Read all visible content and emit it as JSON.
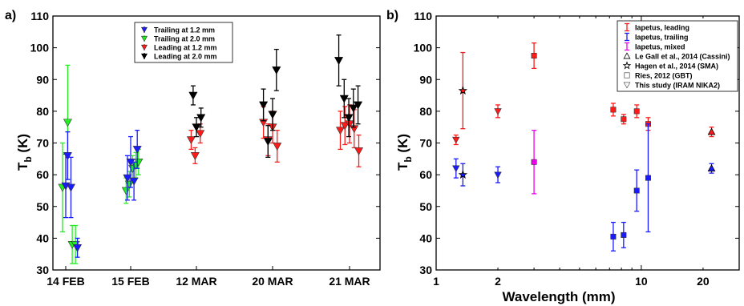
{
  "chart_data": [
    {
      "type": "scatter",
      "panel_label": "a)",
      "title": "",
      "xlabel": "",
      "ylabel": "T",
      "ylabel_sub": "b",
      "ylabel_unit": "(K)",
      "ylim": [
        30,
        110
      ],
      "yticks": [
        30,
        40,
        50,
        60,
        70,
        80,
        90,
        100,
        110
      ],
      "categories": [
        "14 FEB",
        "15 FEB",
        "12 MAR",
        "20 MAR",
        "21 MAR"
      ],
      "legend": {
        "placement": "top-center"
      },
      "series": [
        {
          "name": "Trailing at 1.2 mm",
          "color": "#1a1aff",
          "marker": "triangle-down",
          "points": [
            {
              "x": 0.0,
              "y": 56.5,
              "err": 10
            },
            {
              "x": 0.03,
              "y": 66.0,
              "err": 7.5
            },
            {
              "x": 0.08,
              "y": 56.0,
              "err": 9.5
            },
            {
              "x": 0.18,
              "y": 37.0,
              "err": 3
            },
            {
              "x": 0.95,
              "y": 59.0,
              "err": 7
            },
            {
              "x": 1.0,
              "y": 64.0,
              "err": 8
            },
            {
              "x": 1.05,
              "y": 58.0,
              "err": 6
            },
            {
              "x": 1.1,
              "y": 68.0,
              "err": 6
            }
          ]
        },
        {
          "name": "Trailing at 2.0 mm",
          "color": "#22ee22",
          "marker": "triangle-down",
          "points": [
            {
              "x": -0.05,
              "y": 56.0,
              "err": 14
            },
            {
              "x": 0.03,
              "y": 76.5,
              "err": 18
            },
            {
              "x": 0.1,
              "y": 38.0,
              "err": 6
            },
            {
              "x": 0.15,
              "y": 38.0,
              "err": 6
            },
            {
              "x": 0.93,
              "y": 55.0,
              "err": 4
            },
            {
              "x": 0.98,
              "y": 57.0,
              "err": 4
            },
            {
              "x": 1.03,
              "y": 62.0,
              "err": 4
            },
            {
              "x": 1.08,
              "y": 63.0,
              "err": 4
            },
            {
              "x": 1.12,
              "y": 64.0,
              "err": 4
            }
          ]
        },
        {
          "name": "Leading at 1.2 mm",
          "color": "#ff1a1a",
          "marker": "triangle-down",
          "points": [
            {
              "x": 1.92,
              "y": 71.0,
              "err": 3
            },
            {
              "x": 1.98,
              "y": 66.0,
              "err": 2.5
            },
            {
              "x": 2.05,
              "y": 73.0,
              "err": 3
            },
            {
              "x": 2.88,
              "y": 76.5,
              "err": 5
            },
            {
              "x": 2.94,
              "y": 71.0,
              "err": 5
            },
            {
              "x": 3.0,
              "y": 75.0,
              "err": 5
            },
            {
              "x": 3.06,
              "y": 69.0,
              "err": 5
            },
            {
              "x": 3.88,
              "y": 74.0,
              "err": 6
            },
            {
              "x": 3.94,
              "y": 75.5,
              "err": 6
            },
            {
              "x": 4.0,
              "y": 76.0,
              "err": 6
            },
            {
              "x": 4.06,
              "y": 74.5,
              "err": 6
            },
            {
              "x": 4.12,
              "y": 67.5,
              "err": 5
            }
          ]
        },
        {
          "name": "Leading at 2.0 mm",
          "color": "#000000",
          "marker": "triangle-down",
          "points": [
            {
              "x": 1.95,
              "y": 85.0,
              "err": 3
            },
            {
              "x": 2.0,
              "y": 75.0,
              "err": 3
            },
            {
              "x": 2.06,
              "y": 78.0,
              "err": 3
            },
            {
              "x": 2.88,
              "y": 82.0,
              "err": 5
            },
            {
              "x": 2.94,
              "y": 70.5,
              "err": 5
            },
            {
              "x": 3.0,
              "y": 79.0,
              "err": 5
            },
            {
              "x": 3.05,
              "y": 93.0,
              "err": 6.5
            },
            {
              "x": 3.86,
              "y": 96.0,
              "err": 8
            },
            {
              "x": 3.93,
              "y": 84.0,
              "err": 6
            },
            {
              "x": 3.99,
              "y": 78.0,
              "err": 6
            },
            {
              "x": 4.05,
              "y": 81.0,
              "err": 6
            },
            {
              "x": 4.11,
              "y": 82.0,
              "err": 6
            }
          ]
        }
      ]
    },
    {
      "type": "scatter",
      "panel_label": "b)",
      "title": "",
      "xlabel": "Wavelength (mm)",
      "ylabel": "T",
      "ylabel_sub": "b",
      "ylabel_unit": "(K)",
      "xscale": "log",
      "xlim": [
        1,
        30
      ],
      "xticks": [
        1,
        2,
        10,
        20
      ],
      "xtick_labels": [
        "1",
        "2",
        "10",
        "20"
      ],
      "ylim": [
        30,
        110
      ],
      "yticks": [
        30,
        40,
        50,
        60,
        70,
        80,
        90,
        100,
        110
      ],
      "legend": {
        "placement": "top-right",
        "entries": [
          {
            "label": "Iapetus, leading",
            "kind": "errorbar",
            "color": "#ff1a1a"
          },
          {
            "label": "Iapetus, trailing",
            "kind": "errorbar",
            "color": "#1a1aff"
          },
          {
            "label": "Iapetus, mixed",
            "kind": "errorbar",
            "color": "#ee00ee"
          },
          {
            "label": "Le Gall et al., 2014 (Cassini)",
            "kind": "marker",
            "marker": "triangle-up"
          },
          {
            "label": "Hagen et al., 2014 (SMA)",
            "kind": "marker",
            "marker": "star"
          },
          {
            "label": "Ries, 2012 (GBT)",
            "kind": "marker",
            "marker": "square"
          },
          {
            "label": "This study (IRAM NIKA2)",
            "kind": "marker",
            "marker": "triangle-down"
          }
        ]
      },
      "points": [
        {
          "x": 1.25,
          "y": 71.0,
          "err": 1.5,
          "color": "#ff1a1a",
          "marker": "triangle-down"
        },
        {
          "x": 1.25,
          "y": 62.0,
          "err": 3,
          "color": "#1a1aff",
          "marker": "triangle-down"
        },
        {
          "x": 1.35,
          "y": 86.5,
          "err": 12,
          "color": "#ff1a1a",
          "marker": "star"
        },
        {
          "x": 1.35,
          "y": 60.0,
          "err": 3.5,
          "color": "#1a1aff",
          "marker": "star"
        },
        {
          "x": 2.0,
          "y": 80.0,
          "err": 2,
          "color": "#ff1a1a",
          "marker": "triangle-down"
        },
        {
          "x": 2.0,
          "y": 60.0,
          "err": 2.5,
          "color": "#1a1aff",
          "marker": "triangle-down"
        },
        {
          "x": 3.0,
          "y": 97.5,
          "err": 4,
          "color": "#ff1a1a",
          "marker": "square"
        },
        {
          "x": 3.0,
          "y": 64.0,
          "err": 10,
          "color": "#ee00ee",
          "marker": "square"
        },
        {
          "x": 7.3,
          "y": 80.5,
          "err": 2,
          "color": "#ff1a1a",
          "marker": "square"
        },
        {
          "x": 7.3,
          "y": 40.5,
          "err": 4.5,
          "color": "#1a1aff",
          "marker": "square"
        },
        {
          "x": 8.2,
          "y": 77.5,
          "err": 1.5,
          "color": "#ff1a1a",
          "marker": "square"
        },
        {
          "x": 8.2,
          "y": 41.0,
          "err": 4,
          "color": "#1a1aff",
          "marker": "square"
        },
        {
          "x": 9.5,
          "y": 80.0,
          "err": 2,
          "color": "#ff1a1a",
          "marker": "square"
        },
        {
          "x": 9.5,
          "y": 55.0,
          "err": 6.5,
          "color": "#1a1aff",
          "marker": "square"
        },
        {
          "x": 10.8,
          "y": 76.0,
          "err": 2,
          "color": "#ff1a1a",
          "marker": "square"
        },
        {
          "x": 10.8,
          "y": 59.0,
          "err": 17,
          "color": "#1a1aff",
          "marker": "square"
        },
        {
          "x": 22.0,
          "y": 73.5,
          "err": 1.5,
          "color": "#ff1a1a",
          "marker": "triangle-up"
        },
        {
          "x": 22.0,
          "y": 62.0,
          "err": 1.5,
          "color": "#1a1aff",
          "marker": "triangle-up"
        }
      ]
    }
  ]
}
